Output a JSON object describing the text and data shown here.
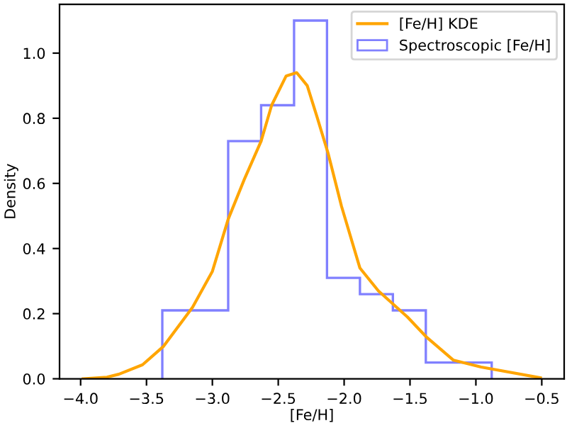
{
  "chart_data": {
    "type": "histogram",
    "xlabel": "[Fe/H]",
    "ylabel": "Density",
    "xlim": [
      -4.16,
      -0.33
    ],
    "xticks": [
      {
        "value": -4.0,
        "label": "−4.0"
      },
      {
        "value": -3.5,
        "label": "−3.5"
      },
      {
        "value": -3.0,
        "label": "−3.0"
      },
      {
        "value": -2.5,
        "label": "−2.5"
      },
      {
        "value": -2.0,
        "label": "−2.0"
      },
      {
        "value": -1.5,
        "label": "−1.5"
      },
      {
        "value": -1.0,
        "label": "−1.0"
      },
      {
        "value": -0.5,
        "label": "−0.5"
      }
    ],
    "ylim": [
      0,
      1.15
    ],
    "yticks": [
      {
        "value": 0,
        "label": "0.0"
      },
      0.2,
      0.4,
      0.6,
      0.8,
      {
        "value": 1,
        "label": "1.0"
      }
    ],
    "legend": "top right",
    "series": [
      {
        "type": "line",
        "name": "[Fe/H] KDE",
        "color": "#ffa500",
        "x": [
          -3.98,
          -3.8,
          -3.71,
          -3.53,
          -3.37,
          -3.15,
          -3.0,
          -2.88,
          -2.76,
          -2.63,
          -2.55,
          -2.44,
          -2.36,
          -2.28,
          -2.21,
          -2.12,
          -2.02,
          -1.88,
          -1.74,
          -1.52,
          -1.38,
          -1.17,
          -0.96,
          -0.51
        ],
        "values": [
          0.0,
          0.005,
          0.014,
          0.043,
          0.1,
          0.22,
          0.33,
          0.49,
          0.61,
          0.73,
          0.84,
          0.93,
          0.94,
          0.9,
          0.81,
          0.69,
          0.53,
          0.34,
          0.27,
          0.19,
          0.13,
          0.057,
          0.036,
          0.003
        ]
      },
      {
        "type": "histogram",
        "name": "Spectroscopic [Fe/H]",
        "color": "#8080ff",
        "bins": [
          -3.38,
          -2.88,
          -2.63,
          -2.38,
          -2.13,
          -1.88,
          -1.63,
          -1.38,
          -0.88
        ],
        "values": [
          0.21,
          0.73,
          0.84,
          1.1,
          0.31,
          0.26,
          0.21,
          0.05
        ]
      }
    ]
  }
}
